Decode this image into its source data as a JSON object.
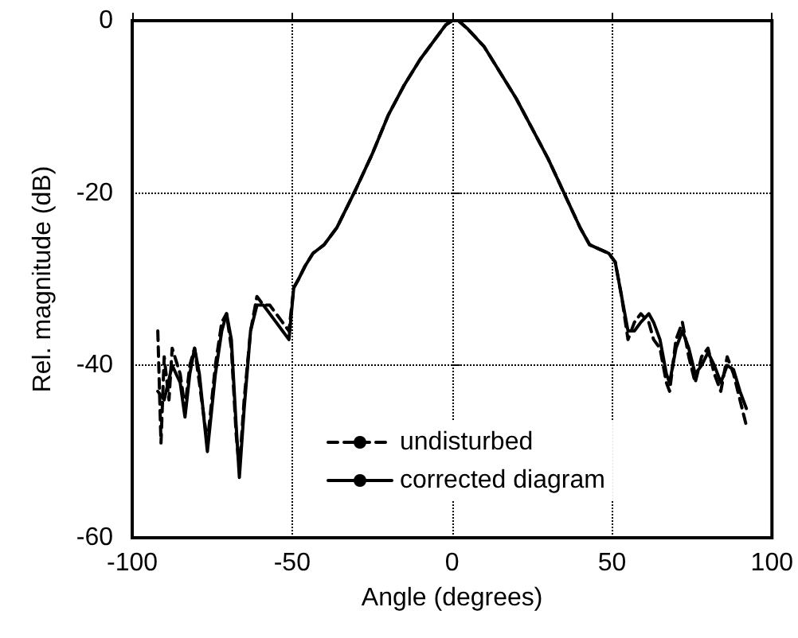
{
  "chart_data": {
    "type": "line",
    "xlabel": "Angle (degrees)",
    "ylabel": "Rel. magnitude (dB)",
    "xlim": [
      -100,
      100
    ],
    "xticks": [
      -100,
      -50,
      0,
      50,
      100
    ],
    "ylim": [
      -60,
      0
    ],
    "yticks": [
      -60,
      -40,
      -20,
      0
    ],
    "grid": true,
    "legend": "bottom",
    "marker": "none",
    "series": [
      {
        "name": "undisturbed",
        "color": "#000000",
        "line_style": "dashed",
        "x": [
          -92,
          -91,
          -90,
          -88.5,
          -87.5,
          -85,
          -83.5,
          -82,
          -80.5,
          -79,
          -76.5,
          -74,
          -72,
          -70.5,
          -69,
          -67.5,
          -66.5,
          -65,
          -63,
          -61,
          -59,
          -57,
          -55,
          -53,
          -51,
          -49.5,
          -48,
          -46,
          -43.5,
          -40,
          -36,
          -30,
          -25,
          -20,
          -15,
          -10,
          -5,
          -2,
          0,
          2,
          5,
          10,
          15,
          20,
          25,
          30,
          35,
          40,
          43,
          46,
          49,
          51,
          53,
          55,
          57,
          59,
          61.5,
          63,
          65,
          67,
          68,
          70,
          72,
          74,
          76,
          78,
          80,
          82,
          84,
          86,
          88,
          90,
          92
        ],
        "values": [
          -36,
          -49,
          -39,
          -44,
          -38,
          -41,
          -45,
          -40,
          -38,
          -42,
          -49,
          -40,
          -35,
          -34,
          -38,
          -48,
          -52,
          -44,
          -36,
          -32,
          -33,
          -33,
          -34,
          -35,
          -36,
          -31,
          -30,
          -28.5,
          -27,
          -26,
          -24,
          -19.5,
          -15.5,
          -11,
          -7.5,
          -4.5,
          -2,
          -0.5,
          0,
          0,
          -1,
          -3,
          -6,
          -9,
          -12.5,
          -16,
          -20,
          -24,
          -26,
          -26.5,
          -27,
          -28,
          -32,
          -37,
          -35,
          -34,
          -35,
          -37,
          -38,
          -42,
          -43,
          -37,
          -35,
          -39,
          -42,
          -39,
          -38,
          -41,
          -43,
          -39,
          -41,
          -44,
          -47
        ]
      },
      {
        "name": "corrected diagram",
        "color": "#000000",
        "line_style": "solid",
        "x": [
          -92,
          -90,
          -87.5,
          -85,
          -83.5,
          -82,
          -80.5,
          -79,
          -76.5,
          -74,
          -72,
          -70.5,
          -69,
          -67.5,
          -66.5,
          -65,
          -63,
          -61,
          -59,
          -57,
          -55,
          -53,
          -51,
          -49.5,
          -48,
          -46,
          -43.5,
          -40,
          -36,
          -30,
          -25,
          -20,
          -15,
          -10,
          -5,
          -2,
          0,
          2,
          5,
          10,
          15,
          20,
          25,
          30,
          35,
          40,
          43,
          46,
          49,
          51,
          53,
          55,
          57,
          59,
          61.5,
          63,
          65,
          67,
          68,
          70,
          72,
          74,
          76,
          78,
          80,
          82,
          84,
          86,
          88,
          90,
          92
        ],
        "values": [
          -43,
          -44,
          -40,
          -42,
          -46,
          -41,
          -38,
          -41,
          -50,
          -41,
          -36,
          -34,
          -37,
          -47,
          -53,
          -45,
          -36,
          -33,
          -33,
          -34,
          -35,
          -36,
          -37,
          -31,
          -30,
          -28.5,
          -27,
          -26,
          -24,
          -19.5,
          -15.5,
          -11,
          -7.5,
          -4.5,
          -2,
          -0.5,
          0,
          0,
          -1,
          -3,
          -6,
          -9,
          -12.5,
          -16,
          -20,
          -24,
          -26,
          -26.5,
          -27,
          -28,
          -32,
          -36,
          -36,
          -35,
          -34,
          -35,
          -37,
          -41,
          -42,
          -38,
          -36,
          -38,
          -41,
          -40,
          -38.5,
          -40,
          -42,
          -40,
          -40.5,
          -43,
          -45
        ]
      }
    ]
  }
}
